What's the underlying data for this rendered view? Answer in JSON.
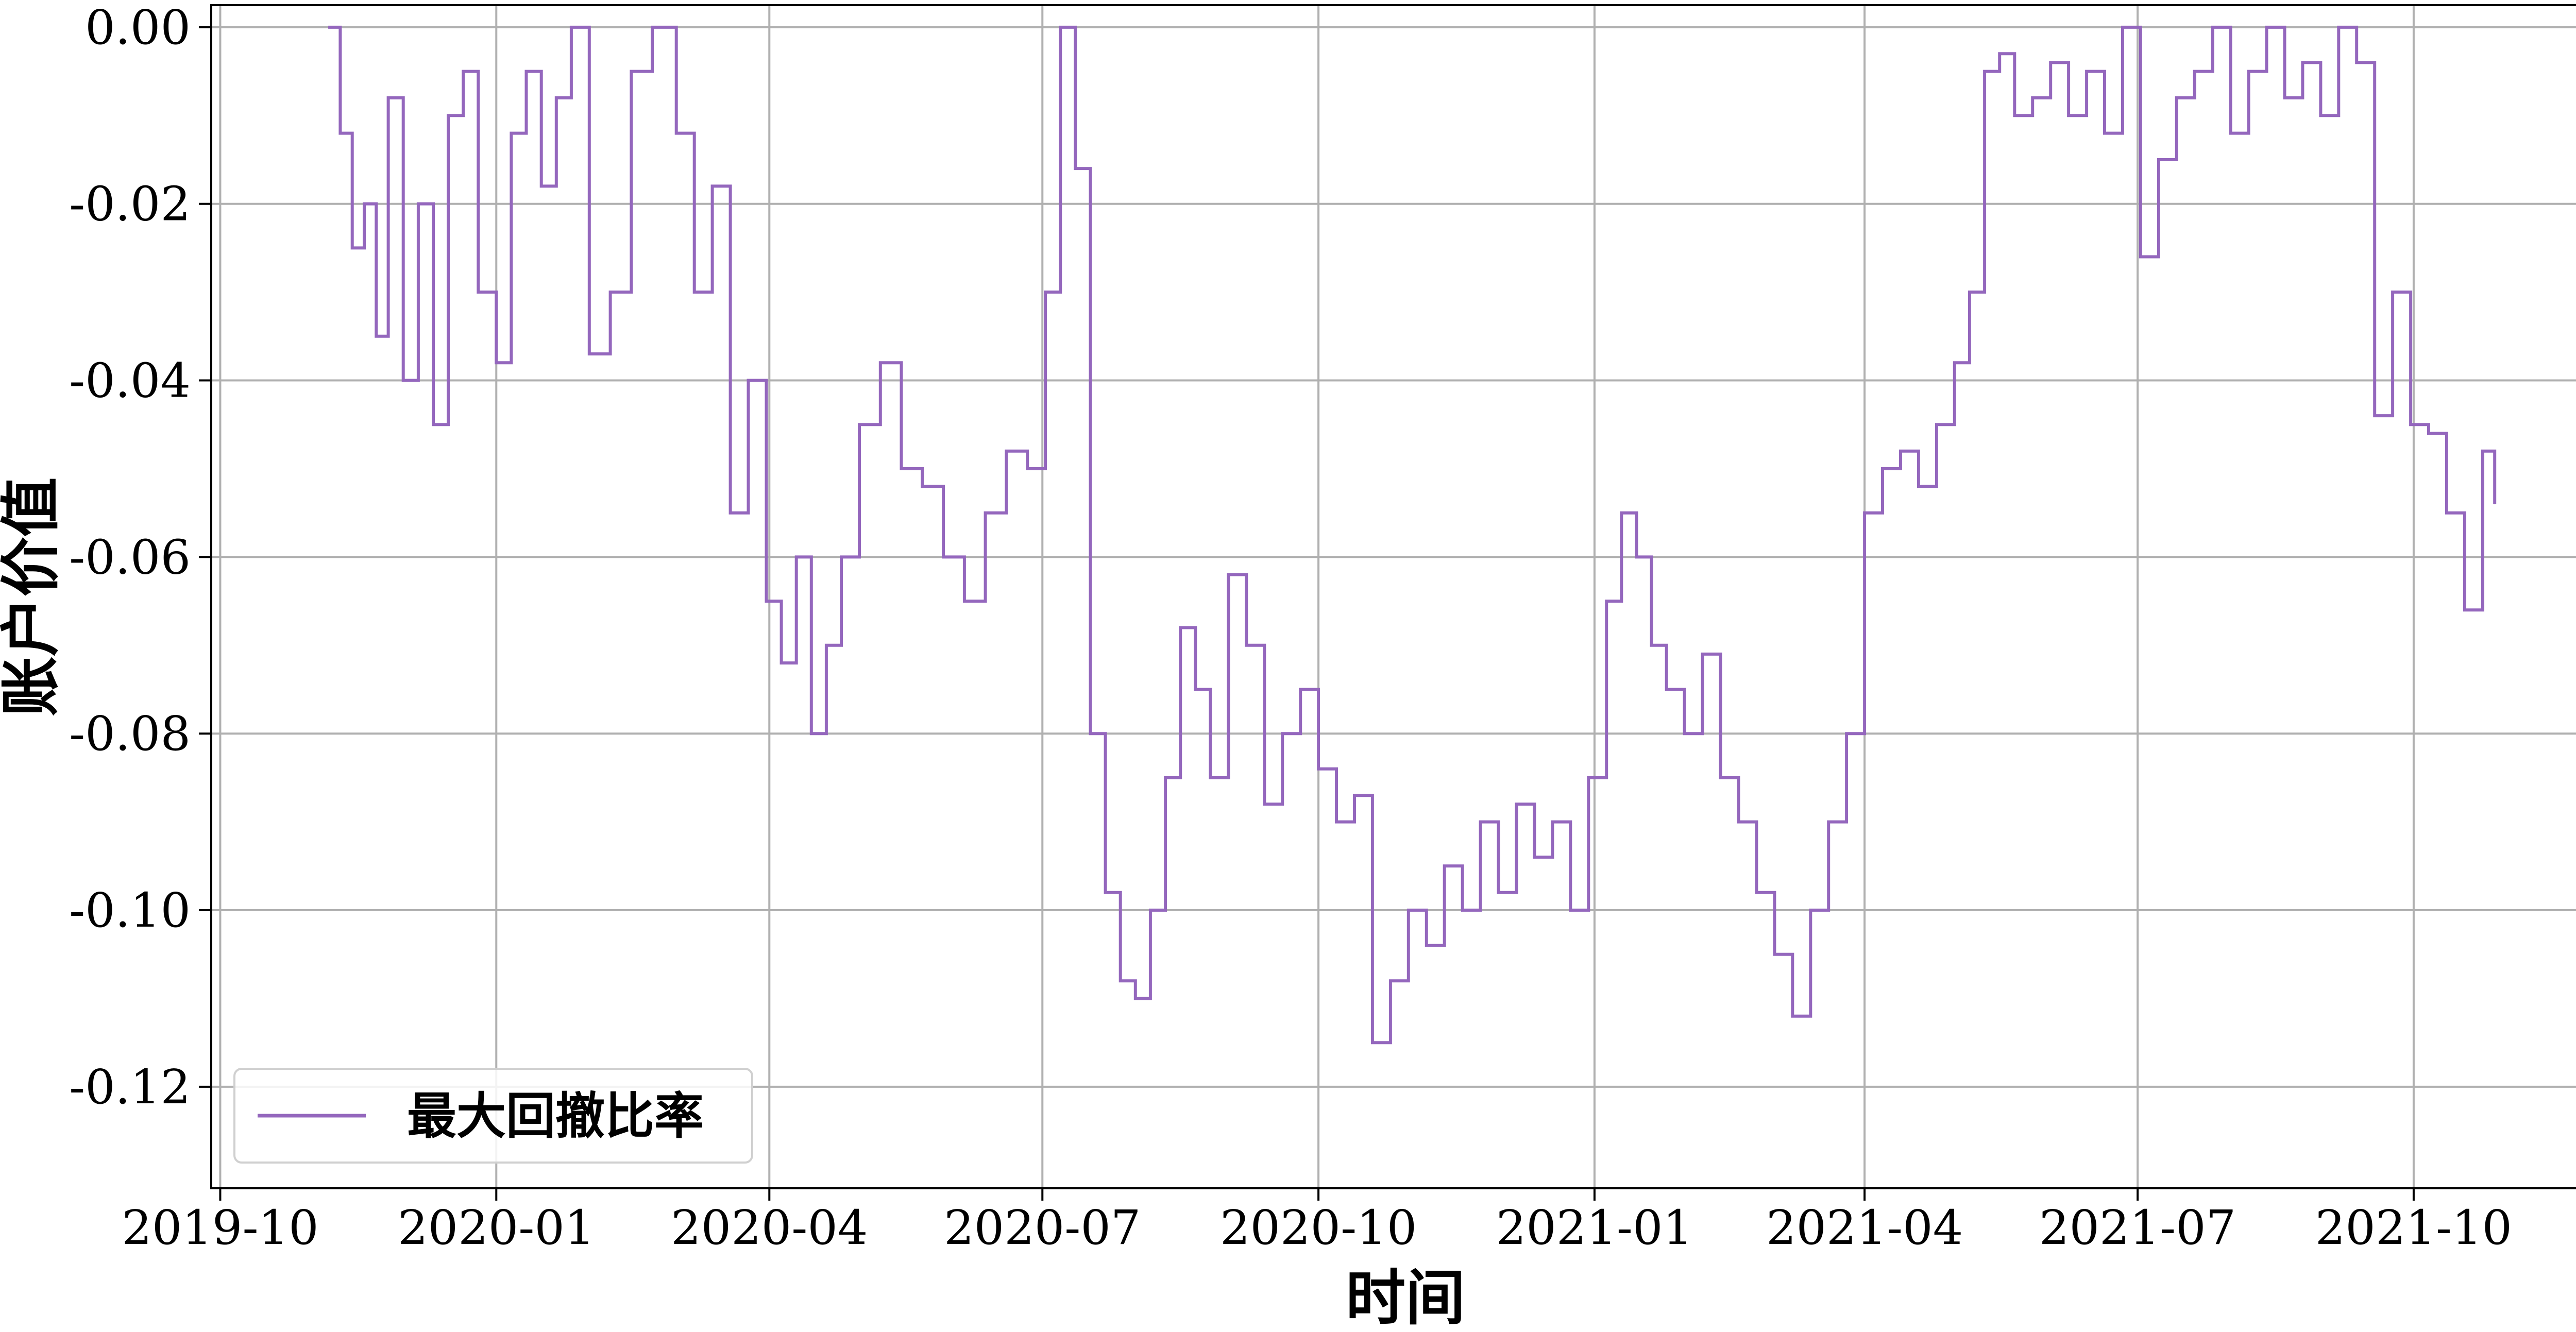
{
  "chart_data": {
    "type": "line",
    "title": "",
    "xlabel": "时间",
    "ylabel": "账户价值",
    "x_ticks": [
      "2019-10",
      "2020-01",
      "2020-04",
      "2020-07",
      "2020-10",
      "2021-01",
      "2021-04",
      "2021-07",
      "2021-10"
    ],
    "y_ticks": [
      "0.00",
      "-0.02",
      "-0.04",
      "-0.06",
      "-0.08",
      "-0.10",
      "-0.12"
    ],
    "ylim": [
      -0.1315,
      0.0025
    ],
    "xlim": [
      "2019-09-28",
      "2021-12-02"
    ],
    "grid": true,
    "legend_position": "lower-left",
    "series": [
      {
        "name": "最大回撤比率",
        "color": "#9467bd",
        "x": [
          "2019-11-06",
          "2019-11-10",
          "2019-11-14",
          "2019-11-18",
          "2019-11-22",
          "2019-11-26",
          "2019-12-01",
          "2019-12-06",
          "2019-12-11",
          "2019-12-16",
          "2019-12-21",
          "2019-12-26",
          "2020-01-01",
          "2020-01-06",
          "2020-01-11",
          "2020-01-16",
          "2020-01-21",
          "2020-01-26",
          "2020-02-01",
          "2020-02-08",
          "2020-02-15",
          "2020-02-22",
          "2020-03-01",
          "2020-03-07",
          "2020-03-13",
          "2020-03-19",
          "2020-03-25",
          "2020-03-31",
          "2020-04-05",
          "2020-04-10",
          "2020-04-15",
          "2020-04-20",
          "2020-04-25",
          "2020-05-01",
          "2020-05-08",
          "2020-05-15",
          "2020-05-22",
          "2020-05-29",
          "2020-06-05",
          "2020-06-12",
          "2020-06-19",
          "2020-06-26",
          "2020-07-02",
          "2020-07-07",
          "2020-07-12",
          "2020-07-17",
          "2020-07-22",
          "2020-07-27",
          "2020-08-01",
          "2020-08-06",
          "2020-08-11",
          "2020-08-16",
          "2020-08-21",
          "2020-08-26",
          "2020-09-01",
          "2020-09-07",
          "2020-09-13",
          "2020-09-19",
          "2020-09-25",
          "2020-10-01",
          "2020-10-07",
          "2020-10-13",
          "2020-10-19",
          "2020-10-25",
          "2020-10-31",
          "2020-11-06",
          "2020-11-12",
          "2020-11-18",
          "2020-11-24",
          "2020-11-30",
          "2020-12-06",
          "2020-12-12",
          "2020-12-18",
          "2020-12-24",
          "2020-12-30",
          "2021-01-05",
          "2021-01-10",
          "2021-01-15",
          "2021-01-20",
          "2021-01-25",
          "2021-01-31",
          "2021-02-06",
          "2021-02-12",
          "2021-02-18",
          "2021-02-24",
          "2021-03-02",
          "2021-03-08",
          "2021-03-14",
          "2021-03-20",
          "2021-03-26",
          "2021-04-01",
          "2021-04-07",
          "2021-04-13",
          "2021-04-19",
          "2021-04-25",
          "2021-05-01",
          "2021-05-06",
          "2021-05-11",
          "2021-05-16",
          "2021-05-21",
          "2021-05-27",
          "2021-06-02",
          "2021-06-08",
          "2021-06-14",
          "2021-06-20",
          "2021-06-26",
          "2021-07-02",
          "2021-07-08",
          "2021-07-14",
          "2021-07-20",
          "2021-07-26",
          "2021-08-01",
          "2021-08-07",
          "2021-08-13",
          "2021-08-19",
          "2021-08-25",
          "2021-08-31",
          "2021-09-06",
          "2021-09-12",
          "2021-09-18",
          "2021-09-24",
          "2021-09-30",
          "2021-10-06",
          "2021-10-12",
          "2021-10-18",
          "2021-10-24",
          "2021-10-28"
        ],
        "values": [
          0.0,
          -0.012,
          -0.025,
          -0.02,
          -0.035,
          -0.008,
          -0.04,
          -0.02,
          -0.045,
          -0.01,
          -0.005,
          -0.03,
          -0.038,
          -0.012,
          -0.005,
          -0.018,
          -0.008,
          0.0,
          -0.037,
          -0.03,
          -0.005,
          0.0,
          -0.012,
          -0.03,
          -0.018,
          -0.055,
          -0.04,
          -0.065,
          -0.072,
          -0.06,
          -0.08,
          -0.07,
          -0.06,
          -0.045,
          -0.038,
          -0.05,
          -0.052,
          -0.06,
          -0.065,
          -0.055,
          -0.048,
          -0.05,
          -0.03,
          0.0,
          -0.016,
          -0.08,
          -0.098,
          -0.108,
          -0.11,
          -0.1,
          -0.085,
          -0.068,
          -0.075,
          -0.085,
          -0.062,
          -0.07,
          -0.088,
          -0.08,
          -0.075,
          -0.084,
          -0.09,
          -0.087,
          -0.115,
          -0.108,
          -0.1,
          -0.104,
          -0.095,
          -0.1,
          -0.09,
          -0.098,
          -0.088,
          -0.094,
          -0.09,
          -0.1,
          -0.085,
          -0.065,
          -0.055,
          -0.06,
          -0.07,
          -0.075,
          -0.08,
          -0.071,
          -0.085,
          -0.09,
          -0.098,
          -0.105,
          -0.112,
          -0.1,
          -0.09,
          -0.08,
          -0.055,
          -0.05,
          -0.048,
          -0.052,
          -0.045,
          -0.038,
          -0.03,
          -0.005,
          -0.003,
          -0.01,
          -0.008,
          -0.004,
          -0.01,
          -0.005,
          -0.012,
          0.0,
          -0.026,
          -0.015,
          -0.008,
          -0.005,
          0.0,
          -0.012,
          -0.005,
          0.0,
          -0.008,
          -0.004,
          -0.01,
          0.0,
          -0.004,
          -0.044,
          -0.03,
          -0.045,
          -0.046,
          -0.055,
          -0.066,
          -0.048,
          -0.054
        ]
      }
    ]
  }
}
